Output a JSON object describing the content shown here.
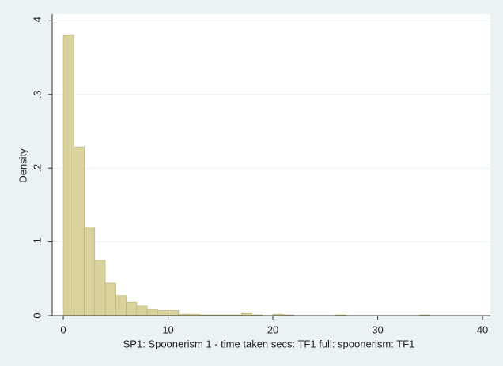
{
  "chart_data": {
    "type": "histogram",
    "x_label": "SP1: Spoonerism 1 - time taken secs: TF1 full: spoonerism: TF1",
    "y_label": "Density",
    "bins": [
      0,
      1,
      2,
      3,
      4,
      5,
      6,
      7,
      8,
      9,
      10,
      11,
      12,
      13,
      14,
      15,
      16,
      17,
      18,
      19,
      20,
      21,
      22,
      23,
      24,
      25,
      26,
      27,
      28,
      29,
      30,
      31,
      32,
      33,
      34,
      35,
      36,
      37,
      38,
      39,
      40
    ],
    "counts": [
      0.381,
      0.229,
      0.119,
      0.075,
      0.044,
      0.027,
      0.018,
      0.013,
      0.008,
      0.007,
      0.007,
      0.002,
      0.002,
      0.001,
      0.001,
      0.001,
      0.001,
      0.003,
      0.001,
      0,
      0.002,
      0.001,
      0,
      0,
      0,
      0,
      0.001,
      0,
      0,
      0,
      0,
      0,
      0,
      0,
      0.001,
      0,
      0,
      0,
      0,
      0
    ],
    "color": "#d9d29c",
    "xlim": [
      -1.06,
      40.75
    ],
    "ylim": [
      0,
      0.409
    ],
    "xticks": [
      0,
      10,
      20,
      30,
      40
    ],
    "yticks": [
      0,
      {
        "value": 0.1,
        "label": ".1"
      },
      {
        "value": 0.2,
        "label": ".2"
      },
      {
        "value": 0.3,
        "label": ".3"
      },
      {
        "value": 0.4,
        "label": ".4"
      }
    ],
    "grid": true
  }
}
